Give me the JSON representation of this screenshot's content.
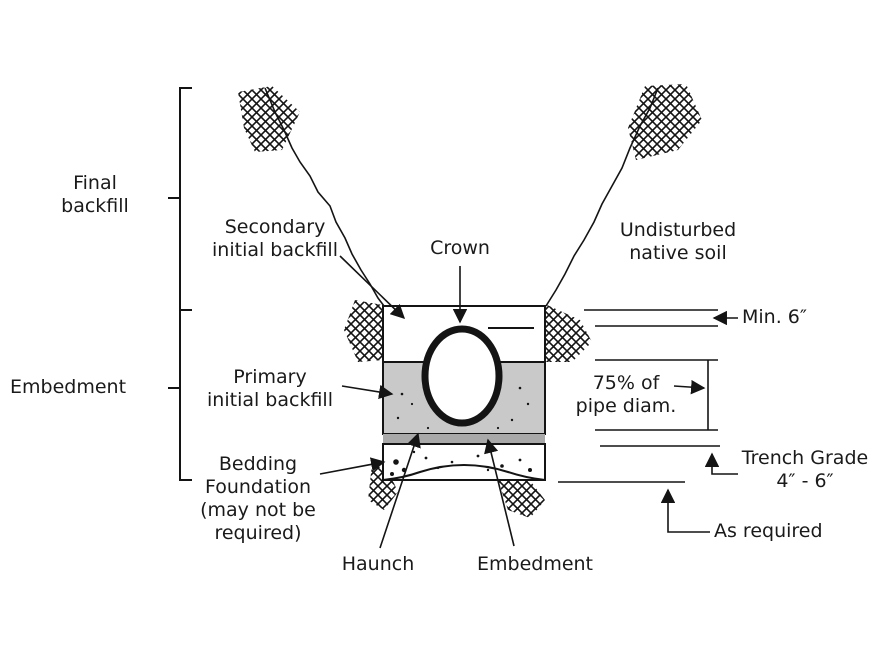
{
  "colors": {
    "ink": "#141414",
    "fill": "#c9c9c9",
    "haunch_band": "#a9a9a9",
    "background": "#ffffff"
  },
  "labels": {
    "final_backfill": [
      "Final",
      "backfill"
    ],
    "embedment_side": "Embedment",
    "secondary_initial_backfill": [
      "Secondary",
      "initial backfill"
    ],
    "crown": "Crown",
    "undisturbed_native_soil": [
      "Undisturbed",
      "native soil"
    ],
    "min_cover": "Min. 6″",
    "pct_pipe_diam": [
      "75% of",
      "pipe diam."
    ],
    "primary_initial_backfill": [
      "Primary",
      "initial backfill"
    ],
    "trench_grade": [
      "Trench Grade",
      "4″ - 6″"
    ],
    "bedding_foundation": [
      "Bedding",
      "Foundation",
      "(may not be",
      "required)"
    ],
    "haunch": "Haunch",
    "embedment_bottom": "Embedment",
    "as_required": "As required"
  }
}
